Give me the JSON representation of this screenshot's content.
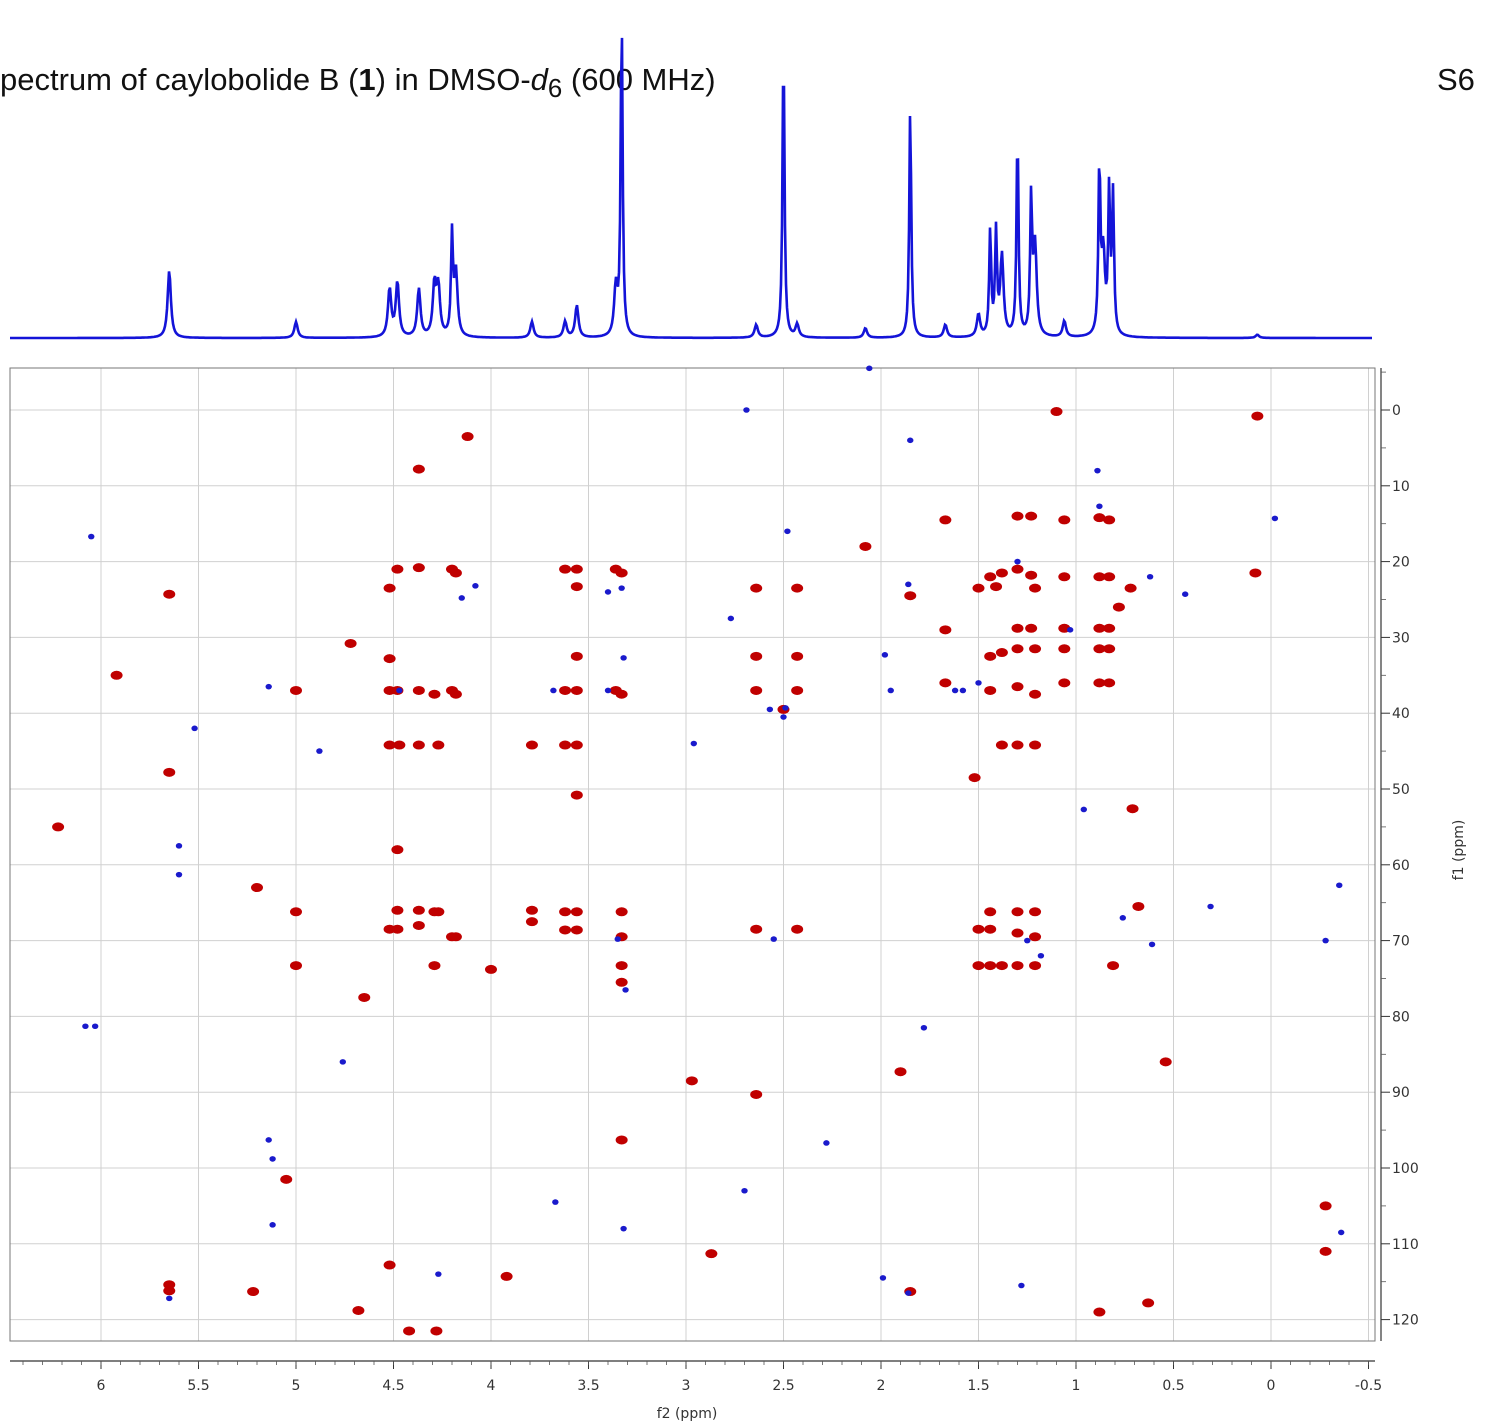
{
  "title": {
    "prefix": "pectrum of caylobolide B (",
    "compound_number": "1",
    "middle": ") in DMSO-",
    "solvent_italic": "d",
    "solvent_sub": "6",
    "suffix": " (600 MHz)"
  },
  "page_label": "S6",
  "colors": {
    "positive": "#c00000",
    "negative": "#1a1acc",
    "spectrum": "#1414d8",
    "grid": "#d0d0d0"
  },
  "chart_data": {
    "type": "scatter",
    "subtype": "2D NMR HSQC with 1H projection",
    "xlabel": "f2 (ppm)",
    "ylabel": "f1 (ppm)",
    "xlim": [
      6.6,
      -0.5
    ],
    "ylim": [
      125,
      -6
    ],
    "xticks": [
      "6",
      "5.5",
      "5",
      "4.5",
      "4",
      "3.5",
      "3",
      "2.5",
      "2",
      "1.5",
      "1",
      "0.5",
      "0",
      "-0.5"
    ],
    "yticks": [
      "0",
      "10",
      "20",
      "30",
      "40",
      "50",
      "60",
      "70",
      "80",
      "90",
      "100",
      "110",
      "120"
    ],
    "projection_peaks": [
      {
        "ppm": 5.65,
        "height": 0.21
      },
      {
        "ppm": 5.0,
        "height": 0.05
      },
      {
        "ppm": 4.52,
        "height": 0.15
      },
      {
        "ppm": 4.48,
        "height": 0.17
      },
      {
        "ppm": 4.37,
        "height": 0.15
      },
      {
        "ppm": 4.29,
        "height": 0.16
      },
      {
        "ppm": 4.27,
        "height": 0.15
      },
      {
        "ppm": 4.2,
        "height": 0.31
      },
      {
        "ppm": 4.18,
        "height": 0.2
      },
      {
        "ppm": 3.79,
        "height": 0.05
      },
      {
        "ppm": 3.62,
        "height": 0.05
      },
      {
        "ppm": 3.56,
        "height": 0.1
      },
      {
        "ppm": 3.36,
        "height": 0.15
      },
      {
        "ppm": 3.33,
        "height": 1.0
      },
      {
        "ppm": 2.64,
        "height": 0.04
      },
      {
        "ppm": 2.5,
        "height": 0.92
      },
      {
        "ppm": 2.43,
        "height": 0.04
      },
      {
        "ppm": 2.08,
        "height": 0.03
      },
      {
        "ppm": 1.85,
        "height": 0.72
      },
      {
        "ppm": 1.67,
        "height": 0.04
      },
      {
        "ppm": 1.5,
        "height": 0.07
      },
      {
        "ppm": 1.44,
        "height": 0.33
      },
      {
        "ppm": 1.41,
        "height": 0.32
      },
      {
        "ppm": 1.38,
        "height": 0.25
      },
      {
        "ppm": 1.3,
        "height": 0.64
      },
      {
        "ppm": 1.23,
        "height": 0.42
      },
      {
        "ppm": 1.21,
        "height": 0.28
      },
      {
        "ppm": 1.06,
        "height": 0.05
      },
      {
        "ppm": 0.88,
        "height": 0.53
      },
      {
        "ppm": 0.86,
        "height": 0.25
      },
      {
        "ppm": 0.83,
        "height": 0.44
      },
      {
        "ppm": 0.81,
        "height": 0.43
      },
      {
        "ppm": 0.07,
        "height": 0.01
      }
    ],
    "positive_peaks": [
      [
        5.65,
        24.3
      ],
      [
        5.65,
        116.2
      ],
      [
        5.65,
        115.4
      ],
      [
        5.0,
        37.0
      ],
      [
        5.0,
        66.2
      ],
      [
        5.0,
        73.3
      ],
      [
        4.52,
        37.0
      ],
      [
        4.48,
        37.0
      ],
      [
        4.52,
        44.2
      ],
      [
        4.47,
        44.2
      ],
      [
        4.52,
        68.5
      ],
      [
        4.48,
        68.5
      ],
      [
        4.48,
        66.0
      ],
      [
        4.37,
        66.0
      ],
      [
        4.37,
        68.0
      ],
      [
        4.29,
        66.2
      ],
      [
        4.27,
        66.2
      ],
      [
        4.37,
        37.0
      ],
      [
        4.29,
        37.5
      ],
      [
        4.2,
        37.0
      ],
      [
        4.18,
        37.5
      ],
      [
        4.37,
        44.2
      ],
      [
        4.27,
        44.2
      ],
      [
        4.2,
        21.0
      ],
      [
        4.18,
        21.5
      ],
      [
        4.2,
        69.5
      ],
      [
        4.18,
        69.5
      ],
      [
        4.29,
        73.3
      ],
      [
        4.48,
        21.0
      ],
      [
        4.37,
        20.8
      ],
      [
        4.52,
        23.5
      ],
      [
        4.52,
        32.8
      ],
      [
        4.0,
        73.8
      ],
      [
        3.79,
        44.2
      ],
      [
        3.79,
        66.0
      ],
      [
        3.79,
        67.5
      ],
      [
        3.62,
        66.2
      ],
      [
        3.56,
        66.2
      ],
      [
        3.62,
        21.0
      ],
      [
        3.56,
        21.0
      ],
      [
        3.62,
        44.2
      ],
      [
        3.56,
        44.2
      ],
      [
        3.62,
        68.6
      ],
      [
        3.56,
        68.6
      ],
      [
        3.56,
        32.5
      ],
      [
        3.62,
        37.0
      ],
      [
        3.56,
        37.0
      ],
      [
        3.56,
        50.8
      ],
      [
        3.56,
        23.3
      ],
      [
        3.36,
        21.0
      ],
      [
        3.33,
        21.5
      ],
      [
        3.36,
        37.0
      ],
      [
        3.33,
        37.5
      ],
      [
        3.33,
        66.2
      ],
      [
        3.33,
        69.5
      ],
      [
        3.33,
        73.3
      ],
      [
        3.33,
        75.5
      ],
      [
        3.33,
        96.3
      ],
      [
        2.64,
        23.5
      ],
      [
        2.43,
        23.5
      ],
      [
        2.64,
        32.5
      ],
      [
        2.43,
        32.5
      ],
      [
        2.64,
        37.0
      ],
      [
        2.43,
        37.0
      ],
      [
        2.5,
        39.5
      ],
      [
        2.64,
        68.5
      ],
      [
        2.43,
        68.5
      ],
      [
        2.08,
        18.0
      ],
      [
        1.85,
        24.5
      ],
      [
        1.85,
        116.3
      ],
      [
        1.67,
        14.5
      ],
      [
        1.67,
        29.0
      ],
      [
        1.67,
        36.0
      ],
      [
        1.5,
        23.5
      ],
      [
        1.44,
        22.0
      ],
      [
        1.41,
        23.3
      ],
      [
        1.38,
        21.5
      ],
      [
        1.3,
        21.0
      ],
      [
        1.23,
        21.8
      ],
      [
        1.21,
        23.5
      ],
      [
        1.3,
        14.0
      ],
      [
        1.23,
        14.0
      ],
      [
        1.06,
        14.5
      ],
      [
        1.3,
        28.8
      ],
      [
        1.23,
        28.8
      ],
      [
        1.06,
        28.8
      ],
      [
        1.44,
        32.5
      ],
      [
        1.38,
        32.0
      ],
      [
        1.3,
        31.5
      ],
      [
        1.21,
        31.5
      ],
      [
        1.06,
        31.5
      ],
      [
        1.44,
        37.0
      ],
      [
        1.3,
        36.5
      ],
      [
        1.21,
        37.5
      ],
      [
        1.06,
        36.0
      ],
      [
        1.38,
        44.2
      ],
      [
        1.3,
        44.2
      ],
      [
        1.21,
        44.2
      ],
      [
        1.44,
        66.2
      ],
      [
        1.3,
        66.2
      ],
      [
        1.21,
        66.2
      ],
      [
        1.44,
        68.5
      ],
      [
        1.3,
        69.0
      ],
      [
        1.21,
        69.5
      ],
      [
        1.5,
        68.5
      ],
      [
        1.5,
        73.3
      ],
      [
        1.44,
        73.3
      ],
      [
        1.38,
        73.3
      ],
      [
        1.3,
        73.3
      ],
      [
        1.21,
        73.3
      ],
      [
        1.06,
        22.0
      ],
      [
        0.88,
        14.2
      ],
      [
        0.83,
        14.5
      ],
      [
        0.88,
        22.0
      ],
      [
        0.83,
        22.0
      ],
      [
        0.88,
        28.8
      ],
      [
        0.83,
        28.8
      ],
      [
        0.88,
        31.5
      ],
      [
        0.83,
        31.5
      ],
      [
        0.88,
        36.0
      ],
      [
        0.83,
        36.0
      ],
      [
        0.81,
        73.3
      ],
      [
        1.1,
        0.2
      ],
      [
        0.07,
        0.8
      ],
      [
        0.78,
        26.0
      ],
      [
        0.72,
        23.5
      ],
      [
        0.71,
        52.6
      ],
      [
        0.68,
        65.5
      ],
      [
        0.88,
        119.0
      ],
      [
        6.22,
        55.0
      ],
      [
        5.92,
        35.0
      ],
      [
        5.65,
        47.8
      ],
      [
        5.2,
        63.0
      ],
      [
        5.22,
        116.3
      ],
      [
        5.05,
        101.5
      ],
      [
        4.68,
        118.8
      ],
      [
        4.65,
        77.5
      ],
      [
        4.72,
        30.8
      ],
      [
        4.52,
        112.8
      ],
      [
        4.48,
        58.0
      ],
      [
        4.37,
        7.8
      ],
      [
        4.12,
        3.5
      ],
      [
        4.42,
        121.5
      ],
      [
        4.28,
        121.5
      ],
      [
        3.92,
        114.3
      ],
      [
        2.97,
        88.5
      ],
      [
        2.87,
        111.3
      ],
      [
        2.64,
        90.3
      ],
      [
        1.9,
        87.3
      ],
      [
        1.52,
        48.5
      ],
      [
        0.63,
        117.8
      ],
      [
        0.54,
        86.0
      ],
      [
        0.08,
        21.5
      ],
      [
        -0.28,
        105.0
      ],
      [
        -0.28,
        111.0
      ]
    ],
    "negative_peaks": [
      [
        5.65,
        117.2
      ],
      [
        5.6,
        57.5
      ],
      [
        5.6,
        61.3
      ],
      [
        5.52,
        42.0
      ],
      [
        6.08,
        81.3
      ],
      [
        6.03,
        81.3
      ],
      [
        6.05,
        16.7
      ],
      [
        5.14,
        36.5
      ],
      [
        5.14,
        96.3
      ],
      [
        5.12,
        98.8
      ],
      [
        5.12,
        107.5
      ],
      [
        4.88,
        45.0
      ],
      [
        4.76,
        86.0
      ],
      [
        4.47,
        37.0
      ],
      [
        4.27,
        114.0
      ],
      [
        4.15,
        24.8
      ],
      [
        4.08,
        23.2
      ],
      [
        3.68,
        37.0
      ],
      [
        3.67,
        104.5
      ],
      [
        3.4,
        37.0
      ],
      [
        3.4,
        24.0
      ],
      [
        3.33,
        23.5
      ],
      [
        3.32,
        32.7
      ],
      [
        3.35,
        69.8
      ],
      [
        3.31,
        76.5
      ],
      [
        3.32,
        108.0
      ],
      [
        2.96,
        44.0
      ],
      [
        2.77,
        27.5
      ],
      [
        2.69,
        0.0
      ],
      [
        2.7,
        103.0
      ],
      [
        2.55,
        69.8
      ],
      [
        2.48,
        16.0
      ],
      [
        2.28,
        96.7
      ],
      [
        2.57,
        39.5
      ],
      [
        2.5,
        40.5
      ],
      [
        2.49,
        39.3
      ],
      [
        2.06,
        -5.5
      ],
      [
        1.99,
        114.5
      ],
      [
        1.95,
        37.0
      ],
      [
        1.98,
        32.3
      ],
      [
        1.86,
        23.0
      ],
      [
        1.86,
        116.5
      ],
      [
        1.85,
        4.0
      ],
      [
        1.78,
        81.5
      ],
      [
        1.62,
        37.0
      ],
      [
        1.58,
        37.0
      ],
      [
        1.5,
        36.0
      ],
      [
        1.25,
        70.0
      ],
      [
        1.18,
        72.0
      ],
      [
        1.28,
        115.5
      ],
      [
        1.3,
        20.0
      ],
      [
        0.96,
        52.7
      ],
      [
        0.89,
        8.0
      ],
      [
        0.88,
        12.7
      ],
      [
        0.76,
        67.0
      ],
      [
        0.61,
        70.5
      ],
      [
        0.62,
        22.0
      ],
      [
        0.44,
        24.3
      ],
      [
        0.31,
        65.5
      ],
      [
        -0.28,
        70.0
      ],
      [
        -0.35,
        62.7
      ],
      [
        -0.36,
        108.5
      ],
      [
        -0.02,
        14.3
      ],
      [
        1.03,
        29.0
      ]
    ]
  }
}
